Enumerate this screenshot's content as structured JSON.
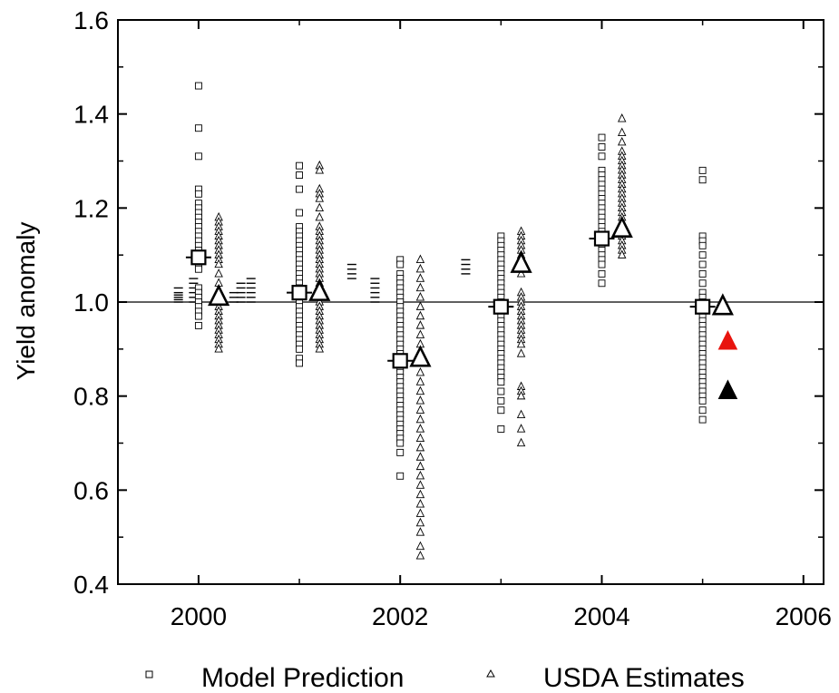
{
  "chart_data": {
    "type": "scatter",
    "title": "",
    "xlabel": "",
    "ylabel": "Yield anomaly",
    "xlim": [
      1999.2,
      2006.2
    ],
    "ylim": [
      0.4,
      1.6
    ],
    "xticks": [
      "2000",
      "2002",
      "2004",
      "2006"
    ],
    "yticks": [
      "0.4",
      "0.6",
      "0.8",
      "1.0",
      "1.2",
      "1.4",
      "1.6"
    ],
    "reference_line": 1.0,
    "grid": false,
    "legend_position": "bottom",
    "series": [
      {
        "name": "Model Prediction",
        "marker": "square",
        "color": "#000000",
        "groups": [
          {
            "x": 2000.0,
            "values": [
              1.46,
              1.37,
              1.31,
              1.24,
              1.23,
              1.21,
              1.2,
              1.19,
              1.18,
              1.17,
              1.16,
              1.15,
              1.14,
              1.13,
              1.12,
              1.11,
              1.1,
              1.09,
              1.08,
              1.07,
              1.03,
              1.02,
              1.01,
              1.0,
              0.99,
              0.98,
              0.97,
              0.95
            ],
            "mean": 1.095
          },
          {
            "x": 2001.0,
            "values": [
              1.29,
              1.27,
              1.24,
              1.19,
              1.16,
              1.15,
              1.14,
              1.13,
              1.12,
              1.11,
              1.1,
              1.09,
              1.08,
              1.07,
              1.06,
              1.05,
              1.04,
              1.03,
              1.02,
              1.01,
              1.0,
              0.99,
              0.98,
              0.97,
              0.96,
              0.95,
              0.94,
              0.93,
              0.92,
              0.91,
              0.9,
              0.88,
              0.87
            ],
            "mean": 1.02
          },
          {
            "x": 2002.0,
            "values": [
              1.09,
              1.08,
              1.06,
              1.05,
              1.04,
              1.03,
              1.02,
              1.01,
              1.0,
              0.99,
              0.98,
              0.97,
              0.96,
              0.95,
              0.94,
              0.93,
              0.92,
              0.91,
              0.9,
              0.89,
              0.88,
              0.87,
              0.86,
              0.85,
              0.84,
              0.83,
              0.82,
              0.81,
              0.8,
              0.79,
              0.78,
              0.77,
              0.76,
              0.75,
              0.74,
              0.73,
              0.72,
              0.71,
              0.7,
              0.68,
              0.63
            ],
            "mean": 0.875
          },
          {
            "x": 2003.0,
            "values": [
              1.14,
              1.13,
              1.12,
              1.11,
              1.1,
              1.09,
              1.08,
              1.07,
              1.06,
              1.05,
              1.04,
              1.03,
              1.02,
              1.01,
              1.0,
              0.99,
              0.98,
              0.97,
              0.96,
              0.95,
              0.94,
              0.93,
              0.92,
              0.91,
              0.9,
              0.89,
              0.88,
              0.87,
              0.86,
              0.85,
              0.84,
              0.83,
              0.81,
              0.79,
              0.77,
              0.73
            ],
            "mean": 0.99
          },
          {
            "x": 2004.0,
            "values": [
              1.35,
              1.33,
              1.31,
              1.28,
              1.27,
              1.26,
              1.25,
              1.24,
              1.23,
              1.22,
              1.21,
              1.2,
              1.19,
              1.18,
              1.17,
              1.16,
              1.15,
              1.14,
              1.13,
              1.12,
              1.11,
              1.1,
              1.09,
              1.08,
              1.06,
              1.04
            ],
            "mean": 1.135
          },
          {
            "x": 2005.0,
            "values": [
              1.28,
              1.26,
              1.14,
              1.13,
              1.12,
              1.1,
              1.08,
              1.06,
              1.04,
              1.02,
              1.01,
              1.0,
              0.99,
              0.98,
              0.97,
              0.96,
              0.95,
              0.94,
              0.93,
              0.92,
              0.91,
              0.9,
              0.89,
              0.88,
              0.87,
              0.86,
              0.85,
              0.84,
              0.83,
              0.82,
              0.81,
              0.8,
              0.79,
              0.77,
              0.75
            ],
            "mean": 0.99
          }
        ]
      },
      {
        "name": "USDA Estimates",
        "marker": "triangle",
        "color": "#000000",
        "groups": [
          {
            "x": 2000.2,
            "values": [
              1.18,
              1.17,
              1.16,
              1.15,
              1.14,
              1.13,
              1.12,
              1.11,
              1.1,
              1.09,
              1.08,
              1.06,
              1.04,
              1.02,
              1.01,
              1.0,
              0.99,
              0.98,
              0.97,
              0.96,
              0.95,
              0.94,
              0.93,
              0.92,
              0.91,
              0.9
            ],
            "mean": 1.01
          },
          {
            "x": 2001.2,
            "values": [
              1.29,
              1.28,
              1.24,
              1.23,
              1.22,
              1.2,
              1.18,
              1.16,
              1.15,
              1.14,
              1.13,
              1.12,
              1.11,
              1.1,
              1.09,
              1.08,
              1.07,
              1.06,
              1.05,
              1.04,
              1.03,
              1.02,
              1.01,
              1.0,
              0.99,
              0.98,
              0.97,
              0.96,
              0.95,
              0.94,
              0.93,
              0.92,
              0.91,
              0.9
            ],
            "mean": 1.02
          },
          {
            "x": 2002.2,
            "values": [
              1.09,
              1.07,
              1.05,
              1.03,
              1.01,
              0.99,
              0.97,
              0.95,
              0.93,
              0.91,
              0.89,
              0.87,
              0.85,
              0.83,
              0.81,
              0.79,
              0.77,
              0.75,
              0.73,
              0.71,
              0.69,
              0.67,
              0.65,
              0.63,
              0.61,
              0.59,
              0.57,
              0.55,
              0.53,
              0.51,
              0.48,
              0.46
            ],
            "mean": 0.88
          },
          {
            "x": 2003.2,
            "values": [
              1.15,
              1.14,
              1.13,
              1.12,
              1.11,
              1.1,
              1.09,
              1.08,
              1.07,
              1.06,
              1.02,
              1.01,
              1.0,
              0.99,
              0.98,
              0.97,
              0.96,
              0.95,
              0.94,
              0.93,
              0.92,
              0.91,
              0.89,
              0.82,
              0.81,
              0.8,
              0.76,
              0.73,
              0.7
            ],
            "mean": 1.08
          },
          {
            "x": 2004.2,
            "values": [
              1.39,
              1.36,
              1.34,
              1.32,
              1.31,
              1.3,
              1.29,
              1.28,
              1.27,
              1.26,
              1.25,
              1.24,
              1.23,
              1.22,
              1.21,
              1.2,
              1.19,
              1.18,
              1.17,
              1.16,
              1.15,
              1.14,
              1.13,
              1.12,
              1.11,
              1.1
            ],
            "mean": 1.155
          },
          {
            "x": 2005.2,
            "values": [],
            "mean": 0.99
          }
        ]
      }
    ],
    "extra_points": [
      {
        "x": 2005.25,
        "y": 0.915,
        "marker": "triangle-filled",
        "color": "#e8140e"
      },
      {
        "x": 2005.25,
        "y": 0.81,
        "marker": "triangle-filled",
        "color": "#000000"
      }
    ],
    "subseries": [
      {
        "x": 1999.8,
        "values": [
          1.03,
          1.02,
          1.015,
          1.01,
          1.005,
          1.0
        ]
      },
      {
        "x": 1999.95,
        "values": [
          1.05,
          1.04,
          1.03,
          1.02,
          1.01,
          1.0
        ]
      },
      {
        "x": 2000.35,
        "values": [
          1.02,
          1.01,
          1.0
        ]
      },
      {
        "x": 2000.42,
        "values": [
          1.04,
          1.03,
          1.02,
          1.01,
          1.0
        ]
      },
      {
        "x": 2000.52,
        "values": [
          1.05,
          1.04,
          1.03,
          1.02,
          1.01,
          1.0
        ]
      },
      {
        "x": 2001.52,
        "values": [
          1.08,
          1.07,
          1.06,
          1.05
        ]
      },
      {
        "x": 2001.75,
        "values": [
          1.05,
          1.04,
          1.03,
          1.02,
          1.01,
          1.0
        ]
      },
      {
        "x": 2002.65,
        "values": [
          1.09,
          1.08,
          1.07,
          1.06
        ]
      }
    ],
    "legend": [
      "Model Prediction",
      "USDA Estimates"
    ]
  }
}
